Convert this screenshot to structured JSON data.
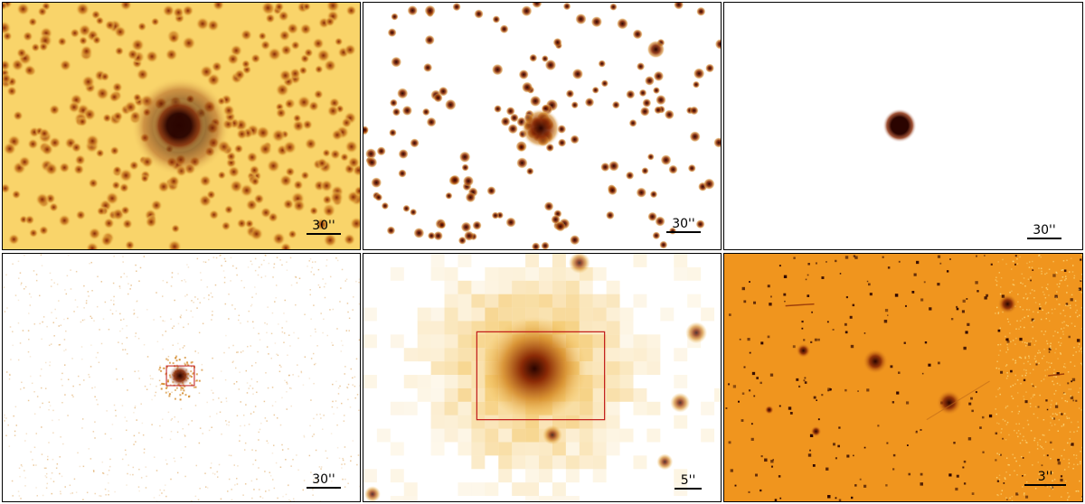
{
  "colors": {
    "panel1_bg": "#f9d46a",
    "source_dark": "#2a0400",
    "source_mid": "#8a2a06",
    "source_light": "#d48a2a",
    "panel2_bg": "#ffffff",
    "panel6_bg": "#f0951e",
    "region_box": "#c01818",
    "scalebar": "#000000"
  },
  "panels": [
    {
      "scalebar": {
        "label": "30''"
      }
    },
    {
      "scalebar": {
        "label": "30''"
      }
    },
    {
      "scalebar": {
        "label": "30''"
      }
    },
    {
      "scalebar": {
        "label": "30''"
      }
    },
    {
      "scalebar": {
        "label": "5''"
      }
    },
    {
      "scalebar": {
        "label": "3''"
      }
    }
  ]
}
